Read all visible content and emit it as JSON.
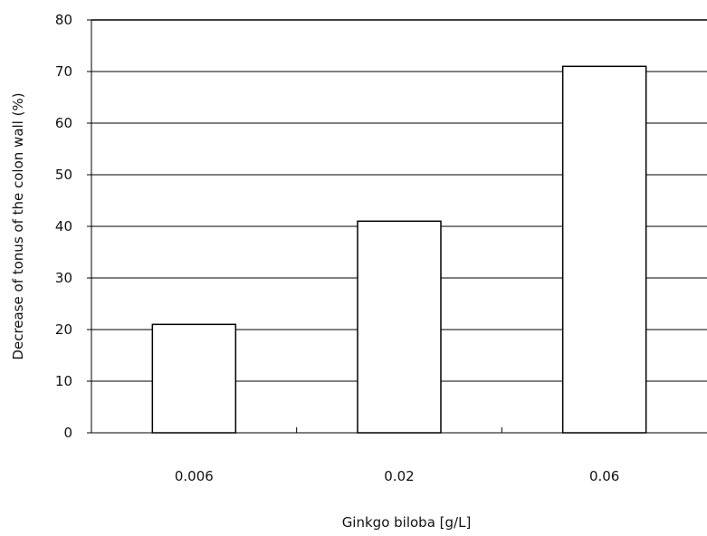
{
  "chart_data": {
    "type": "bar",
    "title": "",
    "categories": [
      "0.006",
      "0.02",
      "0.06"
    ],
    "values": [
      21,
      41,
      71
    ],
    "xlabel": "Ginkgo biloba  [g/L]",
    "ylabel": "Decrease of tonus of the colon wall  (%)",
    "ylim": [
      0,
      80
    ],
    "yticks": [
      "0",
      "10",
      "20",
      "30",
      "40",
      "50",
      "60",
      "70",
      "80"
    ],
    "grid": true,
    "legend": "none",
    "colors": {
      "bar_fill": "#ffffff",
      "bar_stroke": "#000000",
      "gridline": "#000000",
      "axis": "#000000",
      "text": "#111111"
    }
  }
}
